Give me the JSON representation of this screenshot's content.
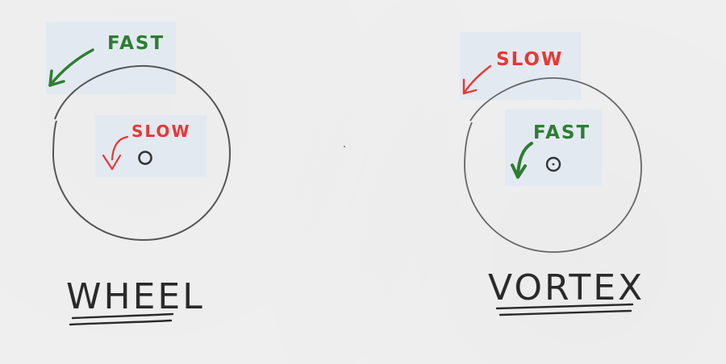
{
  "panels": [
    {
      "title": "WHEEL",
      "outer_label": "FAST",
      "inner_label": "SLOW",
      "outer_color": "#2e7d32",
      "inner_color": "#e53935"
    },
    {
      "title": "VORTEX",
      "outer_label": "SLOW",
      "inner_label": "FAST",
      "outer_color": "#e53935",
      "inner_color": "#2e7d32"
    }
  ],
  "colors": {
    "ink": "#2a2a2a",
    "circle": "#555555",
    "highlight": "#e3e9f1",
    "paper": "#f0f0f0"
  }
}
